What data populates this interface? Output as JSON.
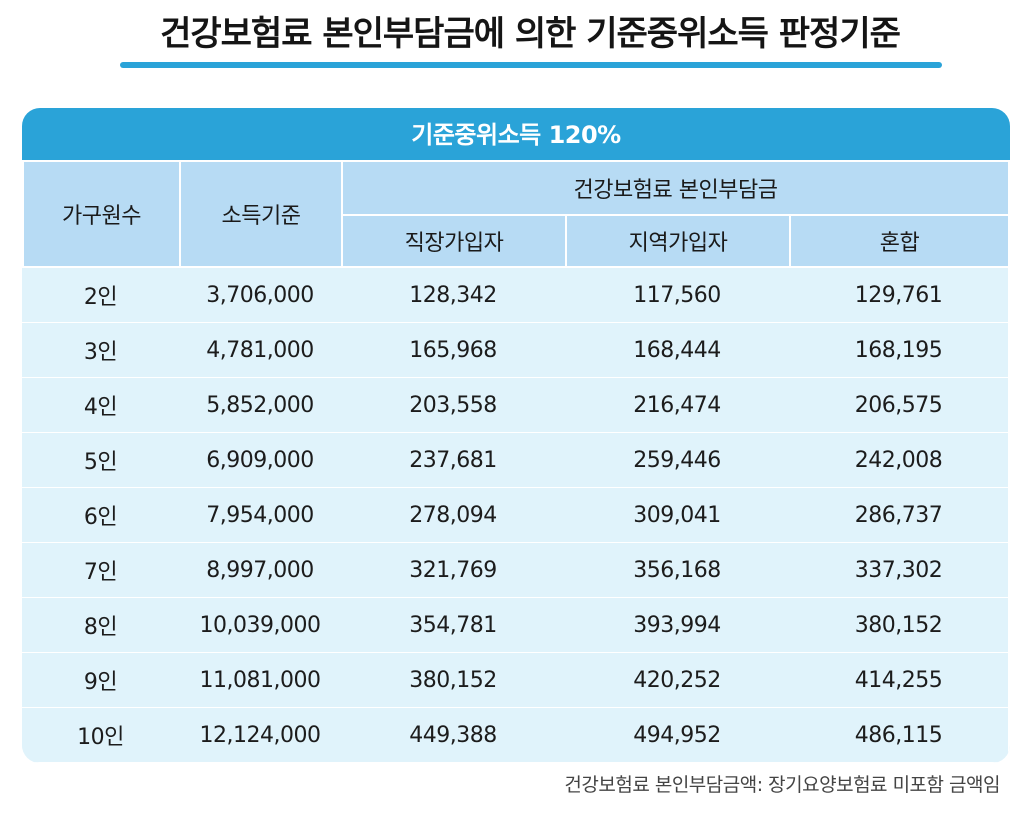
{
  "title": "건강보험료 본인부담금에 의한 기준중위소득 판정기준",
  "table": {
    "band": "기준중위소득 120%",
    "headers": {
      "household": "가구원수",
      "income": "소득기준",
      "premium_group": "건강보험료 본인부담금",
      "employee": "직장가입자",
      "regional": "지역가입자",
      "mixed": "혼합"
    },
    "rows": [
      [
        "2인",
        "3,706,000",
        "128,342",
        "117,560",
        "129,761"
      ],
      [
        "3인",
        "4,781,000",
        "165,968",
        "168,444",
        "168,195"
      ],
      [
        "4인",
        "5,852,000",
        "203,558",
        "216,474",
        "206,575"
      ],
      [
        "5인",
        "6,909,000",
        "237,681",
        "259,446",
        "242,008"
      ],
      [
        "6인",
        "7,954,000",
        "278,094",
        "309,041",
        "286,737"
      ],
      [
        "7인",
        "8,997,000",
        "321,769",
        "356,168",
        "337,302"
      ],
      [
        "8인",
        "10,039,000",
        "354,781",
        "393,994",
        "380,152"
      ],
      [
        "9인",
        "11,081,000",
        "380,152",
        "420,252",
        "414,255"
      ],
      [
        "10인",
        "12,124,000",
        "449,388",
        "494,952",
        "486,115"
      ]
    ]
  },
  "footnote": "건강보험료 본인부담금액: 장기요양보험료 미포함 금액임",
  "colors": {
    "accent": "#2aa3d8",
    "header_cell": "#b7dbf4",
    "body_cell": "#e0f3fb"
  }
}
